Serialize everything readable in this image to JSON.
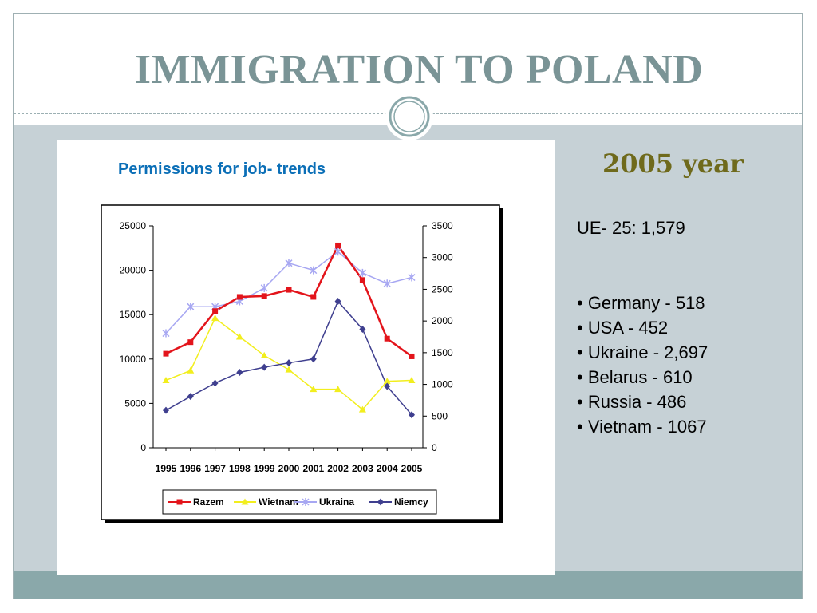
{
  "slide": {
    "title": "IMMIGRATION TO POLAND",
    "year_heading": "2005 year",
    "ue_summary": "UE- 25: 1,579",
    "countries": [
      "• Germany - 518",
      "• USA - 452",
      "• Ukraine - 2,697",
      "• Belarus -  610",
      "• Russia - 486",
      "• Vietnam - 1067"
    ],
    "colors": {
      "title": "#7a9496",
      "year_heading": "#6f6a1c",
      "chart_title": "#0b6fb7",
      "content_bg": "#c6d1d6",
      "footer_band": "#8aa8aa"
    }
  },
  "chart_data": {
    "type": "line",
    "title": "Permissions for job- trends",
    "x": [
      "1995",
      "1996",
      "1997",
      "1998",
      "1999",
      "2000",
      "2001",
      "2002",
      "2003",
      "2004",
      "2005"
    ],
    "left_axis": {
      "ylim": [
        0,
        25000
      ],
      "ticks": [
        "0",
        "5000",
        "10000",
        "15000",
        "20000",
        "25000"
      ]
    },
    "right_axis": {
      "ylim": [
        0,
        3500
      ],
      "ticks": [
        "0",
        "500",
        "1000",
        "1500",
        "2000",
        "2500",
        "3000",
        "3500"
      ]
    },
    "legend_position": "bottom",
    "grid": false,
    "series": [
      {
        "name": "Razem",
        "axis": "left",
        "color": "#e3141b",
        "marker": "square",
        "values": [
          10600,
          11900,
          15400,
          17000,
          17100,
          17800,
          17000,
          22800,
          18900,
          12300,
          10300
        ]
      },
      {
        "name": "Wietnam",
        "axis": "left",
        "color": "#f2ee1e",
        "marker": "triangle",
        "values": [
          7600,
          8700,
          14600,
          12500,
          10400,
          8800,
          6600,
          6600,
          4300,
          7500,
          7600
        ]
      },
      {
        "name": "Ukraina",
        "axis": "left",
        "color": "#a7a7f2",
        "marker": "x",
        "values": [
          12900,
          15900,
          15900,
          16500,
          18000,
          20800,
          20000,
          22100,
          19700,
          18500,
          19200
        ]
      },
      {
        "name": "Niemcy",
        "axis": "right",
        "color": "#3f3f8f",
        "marker": "diamond",
        "values": [
          590,
          810,
          1020,
          1190,
          1270,
          1340,
          1400,
          2310,
          1870,
          970,
          520
        ]
      }
    ]
  }
}
